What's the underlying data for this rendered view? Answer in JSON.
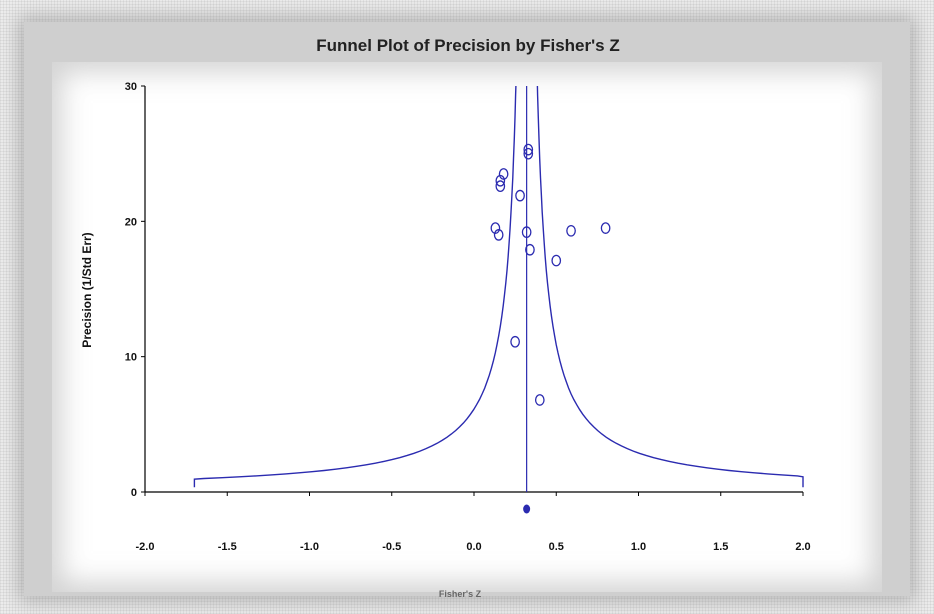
{
  "chart_data": {
    "type": "scatter",
    "title": "Funnel Plot of Precision by Fisher's Z",
    "xlabel": "Fisher's Z",
    "ylabel": "Precision (1/Std Err)",
    "xlim": [
      -2.0,
      2.0
    ],
    "ylim": [
      0,
      30
    ],
    "x_ticks": [
      "-2.0",
      "-1.5",
      "-1.0",
      "-0.5",
      "0.0",
      "0.5",
      "1.0",
      "1.5",
      "2.0"
    ],
    "y_ticks": [
      "0",
      "10",
      "20",
      "30"
    ],
    "grid": false,
    "points": [
      {
        "x": 0.18,
        "y": 23.5
      },
      {
        "x": 0.16,
        "y": 23.0
      },
      {
        "x": 0.16,
        "y": 22.6
      },
      {
        "x": 0.33,
        "y": 25.3
      },
      {
        "x": 0.33,
        "y": 25.0
      },
      {
        "x": 0.28,
        "y": 21.9
      },
      {
        "x": 0.13,
        "y": 19.5
      },
      {
        "x": 0.15,
        "y": 19.0
      },
      {
        "x": 0.32,
        "y": 19.2
      },
      {
        "x": 0.34,
        "y": 17.9
      },
      {
        "x": 0.5,
        "y": 17.1
      },
      {
        "x": 0.59,
        "y": 19.3
      },
      {
        "x": 0.8,
        "y": 19.5
      },
      {
        "x": 0.25,
        "y": 11.1
      },
      {
        "x": 0.4,
        "y": 6.8
      }
    ],
    "summary_effect": 0.32,
    "colors": {
      "line": "#2b2bb0",
      "points": "#2b2bb0",
      "axis": "#000000"
    }
  }
}
